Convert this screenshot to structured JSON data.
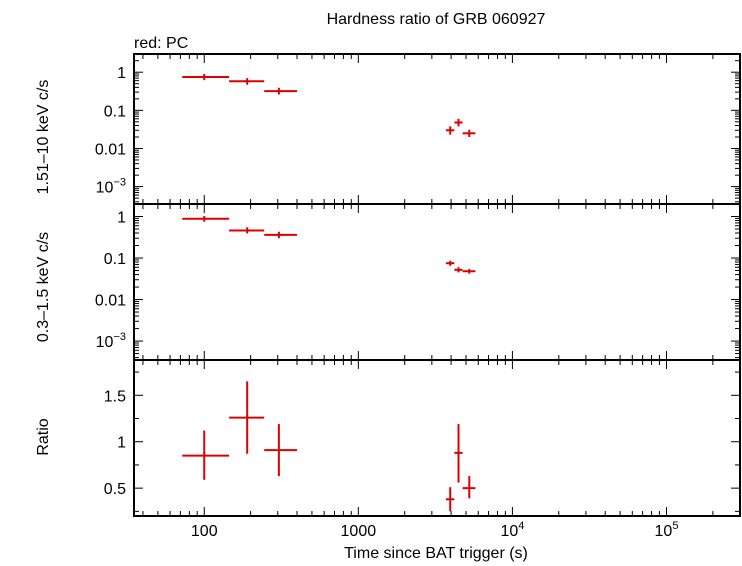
{
  "chart_data": {
    "type": "scatter",
    "title": "Hardness ratio of GRB 060927",
    "subtitle": "red: PC",
    "xlabel": "Time since BAT trigger (s)",
    "x_scale": "log",
    "xlim": [
      35,
      300000
    ],
    "x_tick_labels": [
      "100",
      "1000",
      "10^4",
      "10^5"
    ],
    "series_color": "#dd0000",
    "panels": [
      {
        "id": "hard",
        "ylabel": "1.51–10 keV c/s",
        "y_scale": "log",
        "ylim": [
          0.00035,
          3
        ],
        "y_tick_labels": [
          "1",
          "0.1",
          "0.01",
          "10^-3"
        ],
        "points": [
          {
            "x": 100,
            "xlo": 72,
            "xhi": 145,
            "y": 0.75,
            "ylo": 0.62,
            "yhi": 0.9
          },
          {
            "x": 190,
            "xlo": 145,
            "xhi": 245,
            "y": 0.58,
            "ylo": 0.47,
            "yhi": 0.7
          },
          {
            "x": 305,
            "xlo": 245,
            "xhi": 400,
            "y": 0.32,
            "ylo": 0.26,
            "yhi": 0.39
          },
          {
            "x": 3950,
            "xlo": 3700,
            "xhi": 4200,
            "y": 0.03,
            "ylo": 0.023,
            "yhi": 0.038
          },
          {
            "x": 4470,
            "xlo": 4200,
            "xhi": 4750,
            "y": 0.048,
            "ylo": 0.038,
            "yhi": 0.06
          },
          {
            "x": 5250,
            "xlo": 4750,
            "xhi": 5750,
            "y": 0.025,
            "ylo": 0.02,
            "yhi": 0.031
          }
        ]
      },
      {
        "id": "soft",
        "ylabel": "0.3–1.5 keV c/s",
        "y_scale": "log",
        "ylim": [
          0.00035,
          2
        ],
        "y_tick_labels": [
          "1",
          "0.1",
          "0.01",
          "10^-3"
        ],
        "points": [
          {
            "x": 100,
            "xlo": 72,
            "xhi": 145,
            "y": 0.88,
            "ylo": 0.75,
            "yhi": 1.03
          },
          {
            "x": 190,
            "xlo": 145,
            "xhi": 245,
            "y": 0.46,
            "ylo": 0.39,
            "yhi": 0.55
          },
          {
            "x": 305,
            "xlo": 245,
            "xhi": 400,
            "y": 0.36,
            "ylo": 0.3,
            "yhi": 0.43
          },
          {
            "x": 3950,
            "xlo": 3700,
            "xhi": 4200,
            "y": 0.075,
            "ylo": 0.065,
            "yhi": 0.086
          },
          {
            "x": 4470,
            "xlo": 4200,
            "xhi": 4750,
            "y": 0.052,
            "ylo": 0.045,
            "yhi": 0.06
          },
          {
            "x": 5250,
            "xlo": 4750,
            "xhi": 5750,
            "y": 0.048,
            "ylo": 0.042,
            "yhi": 0.055
          }
        ]
      },
      {
        "id": "ratio",
        "ylabel": "Ratio",
        "y_scale": "linear",
        "ylim": [
          0.2,
          1.88
        ],
        "y_tick_labels": [
          "0.5",
          "1",
          "1.5"
        ],
        "points": [
          {
            "x": 100,
            "xlo": 72,
            "xhi": 145,
            "y": 0.85,
            "ylo": 0.59,
            "yhi": 1.12
          },
          {
            "x": 190,
            "xlo": 145,
            "xhi": 245,
            "y": 1.26,
            "ylo": 0.87,
            "yhi": 1.65
          },
          {
            "x": 305,
            "xlo": 245,
            "xhi": 400,
            "y": 0.91,
            "ylo": 0.63,
            "yhi": 1.19
          },
          {
            "x": 3950,
            "xlo": 3700,
            "xhi": 4200,
            "y": 0.38,
            "ylo": 0.25,
            "yhi": 0.51
          },
          {
            "x": 4470,
            "xlo": 4200,
            "xhi": 4750,
            "y": 0.88,
            "ylo": 0.56,
            "yhi": 1.19
          },
          {
            "x": 5250,
            "xlo": 4750,
            "xhi": 5750,
            "y": 0.5,
            "ylo": 0.39,
            "yhi": 0.63
          }
        ]
      }
    ]
  }
}
